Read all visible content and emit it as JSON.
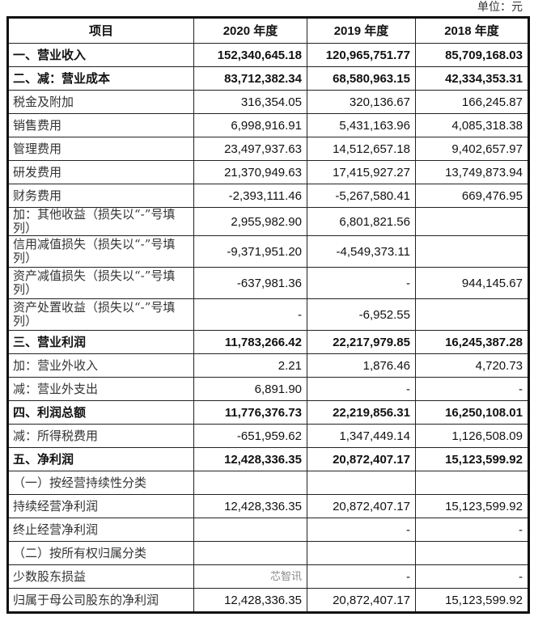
{
  "unit_label": "单位：元",
  "headers": [
    "项目",
    "2020 年度",
    "2019 年度",
    "2018 年度"
  ],
  "rows": [
    {
      "label": "一、营业收入",
      "v": [
        "152,340,645.18",
        "120,965,751.77",
        "85,709,168.03"
      ],
      "bold": true
    },
    {
      "label": "二、减：营业成本",
      "v": [
        "83,712,382.34",
        "68,580,963.15",
        "42,334,353.31"
      ],
      "bold": true
    },
    {
      "label": "税金及附加",
      "v": [
        "316,354.05",
        "320,136.67",
        "166,245.87"
      ]
    },
    {
      "label": "销售费用",
      "v": [
        "6,998,916.91",
        "5,431,163.96",
        "4,085,318.38"
      ]
    },
    {
      "label": "管理费用",
      "v": [
        "23,497,937.63",
        "14,512,657.18",
        "9,402,657.97"
      ]
    },
    {
      "label": "研发费用",
      "v": [
        "21,370,949.63",
        "17,415,927.27",
        "13,749,873.94"
      ]
    },
    {
      "label": "财务费用",
      "v": [
        "-2,393,111.46",
        "-5,267,580.41",
        "669,476.95"
      ]
    },
    {
      "label": "加：其他收益（损失以“-”号填列）",
      "v": [
        "2,955,982.90",
        "6,801,821.56",
        ""
      ]
    },
    {
      "label": "信用减值损失（损失以“-”号填列）",
      "v": [
        "-9,371,951.20",
        "-4,549,373.11",
        ""
      ],
      "tall": true
    },
    {
      "label": "资产减值损失（损失以“-”号填列）",
      "v": [
        "-637,981.36",
        "-",
        "944,145.67"
      ],
      "tall": true
    },
    {
      "label": "资产处置收益（损失以“-”号填列）",
      "v": [
        "-",
        "-6,952.55",
        ""
      ],
      "tall": true
    },
    {
      "label": "三、营业利润",
      "v": [
        "11,783,266.42",
        "22,217,979.85",
        "16,245,387.28"
      ],
      "bold": true
    },
    {
      "label": "加：营业外收入",
      "v": [
        "2.21",
        "1,876.46",
        "4,720.73"
      ]
    },
    {
      "label": "减：营业外支出",
      "v": [
        "6,891.90",
        "-",
        "-"
      ]
    },
    {
      "label": "四、利润总额",
      "v": [
        "11,776,376.73",
        "22,219,856.31",
        "16,250,108.01"
      ],
      "bold": true
    },
    {
      "label": "减：所得税费用",
      "v": [
        "-651,959.62",
        "1,347,449.14",
        "1,126,508.09"
      ]
    },
    {
      "label": "五、净利润",
      "v": [
        "12,428,336.35",
        "20,872,407.17",
        "15,123,599.92"
      ],
      "bold": true
    },
    {
      "label": "（一）按经营持续性分类",
      "v": [
        "",
        "",
        ""
      ]
    },
    {
      "label": "持续经营净利润",
      "v": [
        "12,428,336.35",
        "20,872,407.17",
        "15,123,599.92"
      ]
    },
    {
      "label": "终止经营净利润",
      "v": [
        "",
        "-",
        "-"
      ]
    },
    {
      "label": "（二）按所有权归属分类",
      "v": [
        "",
        "",
        ""
      ]
    },
    {
      "label": "少数股东损益",
      "v": [
        "",
        "-",
        "-"
      ]
    },
    {
      "label": "归属于母公司股东的净利润",
      "v": [
        "12,428,336.35",
        "20,872,407.17",
        "15,123,599.92"
      ]
    }
  ],
  "watermark": "芯智讯"
}
